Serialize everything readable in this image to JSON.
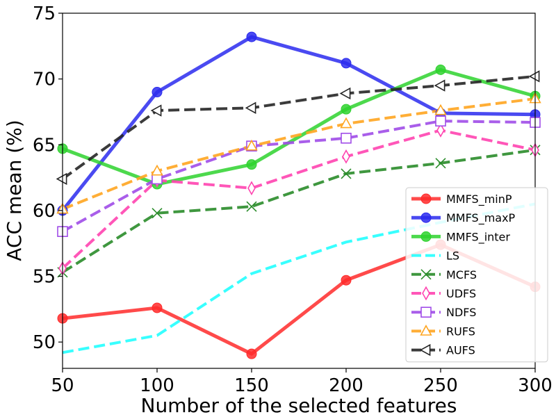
{
  "chart_data": {
    "type": "line",
    "title": "",
    "xlabel": "Number of the selected features",
    "ylabel": "ACC mean (%)",
    "x": [
      50,
      100,
      150,
      200,
      250,
      300
    ],
    "xlim": [
      50,
      300
    ],
    "ylim": [
      48,
      75
    ],
    "xticks": [
      50,
      100,
      150,
      200,
      250,
      300
    ],
    "yticks": [
      50,
      55,
      60,
      65,
      70,
      75
    ],
    "legend_position": "lower-right",
    "series": [
      {
        "name": "MMFS_minP",
        "values": [
          51.8,
          52.6,
          49.1,
          54.7,
          57.4,
          54.2
        ],
        "color": "#ff2a2a",
        "dash": "solid",
        "marker": "circle-filled",
        "width": "thick"
      },
      {
        "name": "MMFS_maxP",
        "values": [
          60.0,
          69.0,
          73.2,
          71.2,
          67.4,
          67.3
        ],
        "color": "#2a2aee",
        "dash": "solid",
        "marker": "circle-filled",
        "width": "thick"
      },
      {
        "name": "MMFS_inter",
        "values": [
          64.7,
          62.0,
          63.5,
          67.7,
          70.7,
          68.7
        ],
        "color": "#2ed22e",
        "dash": "solid",
        "marker": "circle-filled",
        "width": "thick"
      },
      {
        "name": "LS",
        "values": [
          49.2,
          50.5,
          55.2,
          57.6,
          59.1,
          60.5
        ],
        "color": "#22ffff",
        "dash": "dashed",
        "marker": "none",
        "width": "normal"
      },
      {
        "name": "MCFS",
        "values": [
          55.3,
          59.8,
          60.3,
          62.8,
          63.6,
          64.6
        ],
        "color": "#2a8c2a",
        "dash": "dashed",
        "marker": "x",
        "width": "normal"
      },
      {
        "name": "UDFS",
        "values": [
          55.6,
          62.3,
          61.7,
          64.1,
          66.1,
          64.6
        ],
        "color": "#ff44b0",
        "dash": "dashed",
        "marker": "diamond-open",
        "width": "normal"
      },
      {
        "name": "NDFS",
        "values": [
          58.4,
          62.4,
          64.9,
          65.5,
          66.8,
          66.7
        ],
        "color": "#a04ce8",
        "dash": "dashed",
        "marker": "square-open",
        "width": "normal"
      },
      {
        "name": "RUFS",
        "values": [
          60.1,
          63.0,
          64.9,
          66.6,
          67.6,
          68.5
        ],
        "color": "#ffa520",
        "dash": "dashed",
        "marker": "triangle-up-open",
        "width": "normal"
      },
      {
        "name": "AUFS",
        "values": [
          62.4,
          67.6,
          67.8,
          68.9,
          69.5,
          70.2
        ],
        "color": "#262626",
        "dash": "dashed",
        "marker": "triangle-left-open",
        "width": "normal"
      }
    ]
  }
}
